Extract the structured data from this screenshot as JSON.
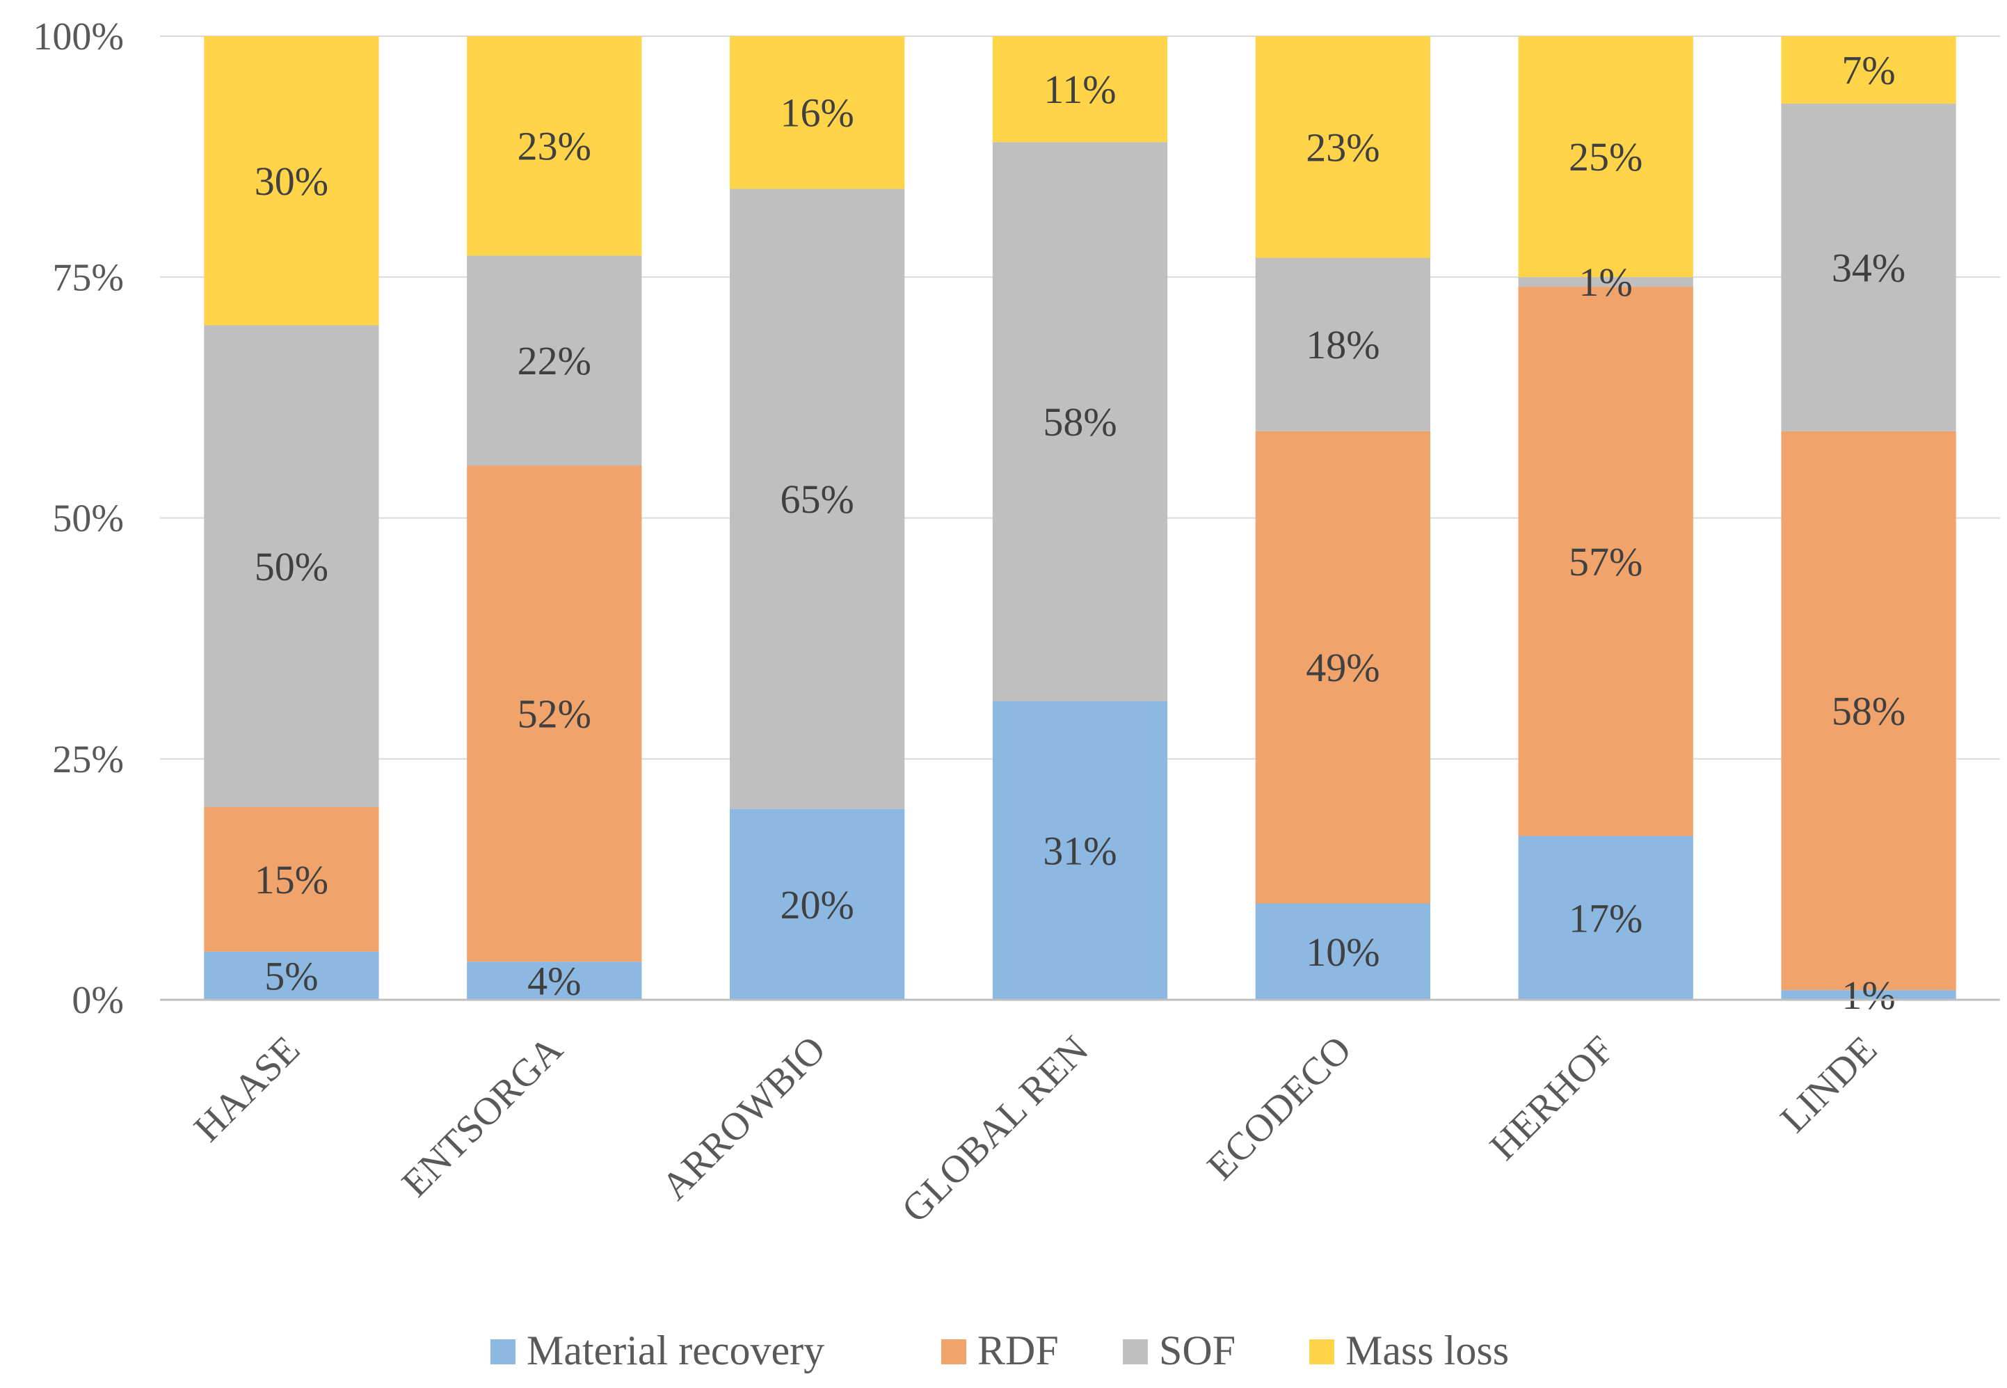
{
  "chart_data": {
    "type": "bar",
    "stacked": true,
    "title": "",
    "xlabel": "",
    "ylabel": "",
    "ylim": [
      0,
      100
    ],
    "y_ticks": [
      "0%",
      "25%",
      "50%",
      "75%",
      "100%"
    ],
    "y_tick_values": [
      0,
      25,
      50,
      75,
      100
    ],
    "grid": true,
    "legend_position": "bottom",
    "categories": [
      "HAASE",
      "ENTSORGA",
      "ARROWBIO",
      "GLOBAL REN",
      "ECODECO",
      "HERHOF",
      "LINDE"
    ],
    "series": [
      {
        "name": "Material recovery",
        "color": "#8db8e2",
        "values": [
          5,
          4,
          20,
          31,
          10,
          17,
          1
        ],
        "labels": [
          "5%",
          "4%",
          "20%",
          "31%",
          "10%",
          "17%",
          "1%"
        ]
      },
      {
        "name": "RDF",
        "color": "#f0a46c",
        "values": [
          15,
          52,
          0,
          0,
          49,
          57,
          58
        ],
        "labels": [
          "15%",
          "52%",
          "",
          "",
          "49%",
          "57%",
          "58%"
        ]
      },
      {
        "name": "SOF",
        "color": "#bfbfbf",
        "values": [
          50,
          22,
          65,
          58,
          18,
          1,
          34
        ],
        "labels": [
          "50%",
          "22%",
          "65%",
          "58%",
          "18%",
          "1%",
          "34%"
        ]
      },
      {
        "name": "Mass loss",
        "color": "#ffd449",
        "values": [
          30,
          23,
          16,
          11,
          23,
          25,
          7
        ],
        "labels": [
          "30%",
          "23%",
          "16%",
          "11%",
          "23%",
          "25%",
          "7%"
        ]
      }
    ]
  }
}
